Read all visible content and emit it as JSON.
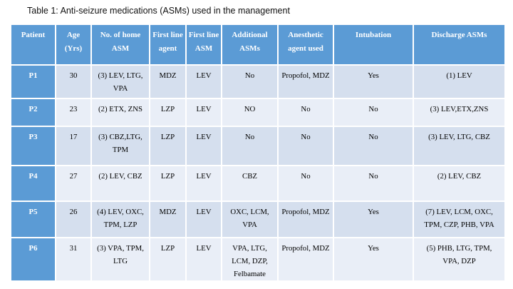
{
  "page": {
    "caption": "Table 1: Anti-seizure medications (ASMs) used in the management"
  },
  "colors": {
    "header_bg": "#5b9bd5",
    "patient_col_bg": "#5b9bd5",
    "row_band_dark": "#d5dfee",
    "row_band_light": "#e9eef7",
    "grid_line": "#ffffff",
    "header_text": "#ffffff",
    "body_text": "#111111"
  },
  "table": {
    "headers": [
      "Patient",
      "Age\n(Yrs)",
      "No. of home\nASM",
      "First line\nagent",
      "First line\nASM",
      "Additional\nASMs",
      "Anesthetic\nagent used",
      "Intubation",
      "Discharge ASMs"
    ],
    "rows": [
      {
        "patient": "P1",
        "age": "30",
        "home_asm": "(3) LEV, LTG,\nVPA",
        "first_line_agent": "MDZ",
        "first_line_asm": "LEV",
        "additional_asms": "No",
        "anesthetic_agent": "Propofol, MDZ",
        "intubation": "Yes",
        "discharge_asms": "(1) LEV"
      },
      {
        "patient": "P2",
        "age": "23",
        "home_asm": "(2) ETX, ZNS",
        "first_line_agent": "LZP",
        "first_line_asm": "LEV",
        "additional_asms": "NO",
        "anesthetic_agent": "No",
        "intubation": "No",
        "discharge_asms": "(3) LEV,ETX,ZNS"
      },
      {
        "patient": "P3",
        "age": "17",
        "home_asm": "(3) CBZ,LTG,\nTPM",
        "first_line_agent": "LZP",
        "first_line_asm": "LEV",
        "additional_asms": "No",
        "anesthetic_agent": "No",
        "intubation": "No",
        "discharge_asms": "(3) LEV, LTG, CBZ"
      },
      {
        "patient": "P4",
        "age": "27",
        "home_asm": "(2) LEV, CBZ",
        "first_line_agent": "LZP",
        "first_line_asm": "LEV",
        "additional_asms": "CBZ",
        "anesthetic_agent": "No",
        "intubation": "No",
        "discharge_asms": "(2) LEV, CBZ"
      },
      {
        "patient": "P5",
        "age": "26",
        "home_asm": "(4) LEV, OXC,\nTPM, LZP",
        "first_line_agent": "MDZ",
        "first_line_asm": "LEV",
        "additional_asms": "OXC, LCM,\nVPA",
        "anesthetic_agent": "Propofol, MDZ",
        "intubation": "Yes",
        "discharge_asms": "(7) LEV, LCM, OXC,\nTPM, CZP, PHB, VPA"
      },
      {
        "patient": "P6",
        "age": "31",
        "home_asm": "(3) VPA, TPM,\nLTG",
        "first_line_agent": "LZP",
        "first_line_asm": "LEV",
        "additional_asms": "VPA, LTG,\nLCM, DZP,\nFelbamate",
        "anesthetic_agent": "Propofol, MDZ",
        "intubation": "Yes",
        "discharge_asms": "(5) PHB, LTG, TPM,\nVPA, DZP"
      }
    ]
  }
}
